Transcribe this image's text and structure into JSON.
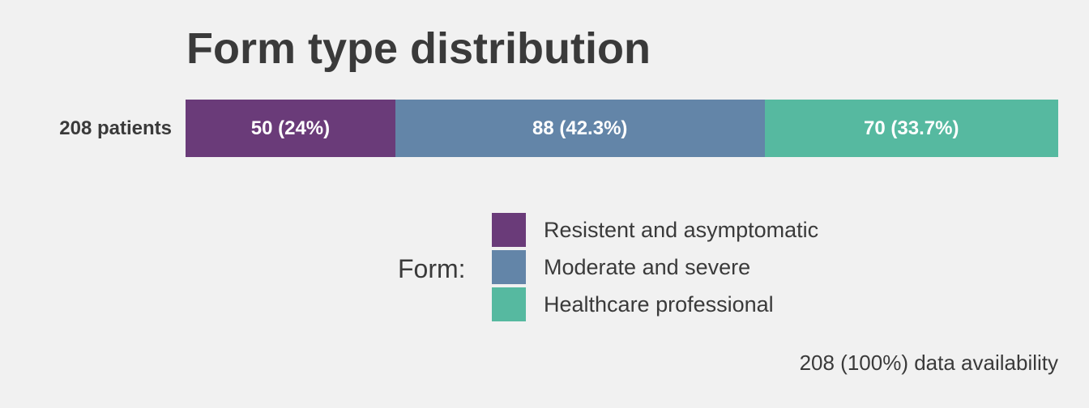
{
  "chart_data": {
    "type": "bar",
    "orientation": "horizontal",
    "stacked": true,
    "title": "Form type distribution",
    "categories": [
      "208 patients"
    ],
    "series": [
      {
        "name": "Resistent and asymptomatic",
        "values": [
          50
        ],
        "label": "50 (24%)",
        "color": "#6a3b79"
      },
      {
        "name": "Moderate and severe",
        "values": [
          88
        ],
        "label": "88 (42.3%)",
        "color": "#6385a8"
      },
      {
        "name": "Healthcare professional",
        "values": [
          70
        ],
        "label": "70 (33.7%)",
        "color": "#56b9a0"
      }
    ],
    "total": 208,
    "legend": {
      "title": "Form:",
      "position": "bottom"
    },
    "caption": "208 (100%) data availability",
    "grid": false
  }
}
